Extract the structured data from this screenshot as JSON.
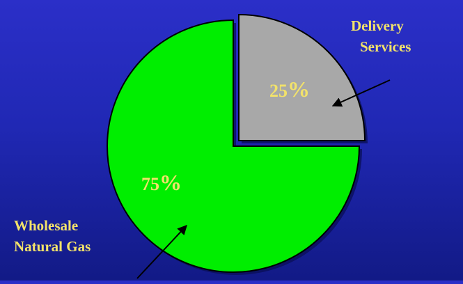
{
  "chart_data": {
    "type": "pie",
    "title": "",
    "start_angle_deg": 0,
    "direction": "clockwise",
    "slices": [
      {
        "label_lines": [
          "Delivery",
          "Services"
        ],
        "value": 25,
        "display_number": "25",
        "display_sign": "%",
        "color": "#a8a8a8",
        "exploded": true
      },
      {
        "label_lines": [
          "Wholesale",
          "Natural Gas"
        ],
        "value": 75,
        "display_number": "75",
        "display_sign": "%",
        "color": "#00ee00",
        "exploded": false
      }
    ],
    "label_color": "#f2e26a",
    "outline_color": "#000000",
    "legend": "none"
  }
}
